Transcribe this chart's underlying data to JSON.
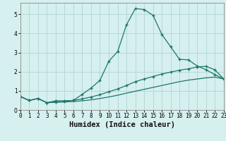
{
  "xlabel": "Humidex (Indice chaleur)",
  "background_color": "#d6efef",
  "grid_color": "#b8d8d8",
  "line_color": "#1a7868",
  "line1_x": [
    0,
    1,
    2,
    3,
    4,
    5,
    6,
    7,
    8,
    9,
    10,
    11,
    12,
    13,
    14,
    15,
    16,
    17,
    18,
    19,
    20,
    21,
    22,
    23
  ],
  "line1_y": [
    0.7,
    0.5,
    0.6,
    0.38,
    0.48,
    0.48,
    0.5,
    0.82,
    1.15,
    1.55,
    2.55,
    3.05,
    4.45,
    5.3,
    5.25,
    4.95,
    3.95,
    3.3,
    2.65,
    2.62,
    2.3,
    2.1,
    1.85,
    1.62
  ],
  "line2_x": [
    0,
    1,
    2,
    3,
    4,
    5,
    6,
    7,
    8,
    9,
    10,
    11,
    12,
    13,
    14,
    15,
    16,
    17,
    18,
    19,
    20,
    21,
    22,
    23
  ],
  "line2_y": [
    0.7,
    0.5,
    0.6,
    0.38,
    0.42,
    0.45,
    0.5,
    0.58,
    0.68,
    0.8,
    0.95,
    1.1,
    1.28,
    1.48,
    1.62,
    1.75,
    1.88,
    1.98,
    2.08,
    2.15,
    2.25,
    2.28,
    2.1,
    1.62
  ],
  "line3_x": [
    0,
    1,
    2,
    3,
    4,
    5,
    6,
    7,
    8,
    9,
    10,
    11,
    12,
    13,
    14,
    15,
    16,
    17,
    18,
    19,
    20,
    21,
    22,
    23
  ],
  "line3_y": [
    0.7,
    0.5,
    0.6,
    0.38,
    0.4,
    0.42,
    0.44,
    0.48,
    0.53,
    0.6,
    0.68,
    0.77,
    0.88,
    0.98,
    1.08,
    1.18,
    1.28,
    1.38,
    1.48,
    1.56,
    1.62,
    1.68,
    1.72,
    1.62
  ],
  "xlim": [
    0,
    23
  ],
  "ylim": [
    0,
    5.6
  ],
  "xticks": [
    0,
    1,
    2,
    3,
    4,
    5,
    6,
    7,
    8,
    9,
    10,
    11,
    12,
    13,
    14,
    15,
    16,
    17,
    18,
    19,
    20,
    21,
    22,
    23
  ],
  "yticks": [
    0,
    1,
    2,
    3,
    4,
    5
  ],
  "tick_fontsize": 5.5,
  "xlabel_fontsize": 7.5
}
